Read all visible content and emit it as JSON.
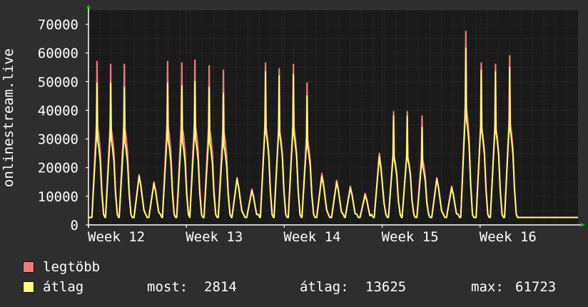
{
  "chart_data": {
    "type": "area",
    "ylabel": "onlinestream.live",
    "ylim": [
      0,
      75000
    ],
    "yticks": [
      0,
      10000,
      20000,
      30000,
      40000,
      50000,
      60000,
      70000
    ],
    "xlim": [
      0,
      43
    ],
    "xticks": [
      {
        "x": 0,
        "label": "Week 12"
      },
      {
        "x": 8.6,
        "label": "Week 13"
      },
      {
        "x": 17.2,
        "label": "Week 14"
      },
      {
        "x": 25.8,
        "label": "Week 15"
      },
      {
        "x": 34.4,
        "label": "Week 16"
      }
    ],
    "grid": true,
    "series": [
      {
        "name": "legtöbb",
        "color": "#f07a7a",
        "peaks": [
          {
            "x": 0.75,
            "y": 57000
          },
          {
            "x": 1.95,
            "y": 56000
          },
          {
            "x": 3.15,
            "y": 56000
          },
          {
            "x": 4.45,
            "y": 17500
          },
          {
            "x": 5.75,
            "y": 15000
          },
          {
            "x": 6.95,
            "y": 57000
          },
          {
            "x": 8.2,
            "y": 56500
          },
          {
            "x": 9.35,
            "y": 57500
          },
          {
            "x": 10.6,
            "y": 55500
          },
          {
            "x": 11.85,
            "y": 54000
          },
          {
            "x": 13.05,
            "y": 16500
          },
          {
            "x": 14.35,
            "y": 12500
          },
          {
            "x": 15.55,
            "y": 56500
          },
          {
            "x": 16.75,
            "y": 54500
          },
          {
            "x": 18.0,
            "y": 56000
          },
          {
            "x": 19.2,
            "y": 49500
          },
          {
            "x": 20.5,
            "y": 18000
          },
          {
            "x": 21.8,
            "y": 15500
          },
          {
            "x": 23.0,
            "y": 13500
          },
          {
            "x": 24.3,
            "y": 11000
          },
          {
            "x": 25.55,
            "y": 25000
          },
          {
            "x": 26.8,
            "y": 39500
          },
          {
            "x": 28.0,
            "y": 39500
          },
          {
            "x": 29.3,
            "y": 38000
          },
          {
            "x": 30.6,
            "y": 16500
          },
          {
            "x": 31.9,
            "y": 13500
          },
          {
            "x": 33.15,
            "y": 67500
          },
          {
            "x": 34.5,
            "y": 56500
          },
          {
            "x": 35.75,
            "y": 56000
          },
          {
            "x": 37.0,
            "y": 59000
          }
        ]
      },
      {
        "name": "átlag",
        "color": "#ffff80",
        "peaks": [
          {
            "x": 0.75,
            "y": 49500
          },
          {
            "x": 1.95,
            "y": 49500
          },
          {
            "x": 3.15,
            "y": 48000
          },
          {
            "x": 4.45,
            "y": 17000
          },
          {
            "x": 5.75,
            "y": 14500
          },
          {
            "x": 6.95,
            "y": 49500
          },
          {
            "x": 8.2,
            "y": 48500
          },
          {
            "x": 9.35,
            "y": 50000
          },
          {
            "x": 10.6,
            "y": 48000
          },
          {
            "x": 11.85,
            "y": 46000
          },
          {
            "x": 13.05,
            "y": 16000
          },
          {
            "x": 14.35,
            "y": 12000
          },
          {
            "x": 15.55,
            "y": 53500
          },
          {
            "x": 16.75,
            "y": 52000
          },
          {
            "x": 18.0,
            "y": 52500
          },
          {
            "x": 19.2,
            "y": 45000
          },
          {
            "x": 20.5,
            "y": 17000
          },
          {
            "x": 21.8,
            "y": 15000
          },
          {
            "x": 23.0,
            "y": 13000
          },
          {
            "x": 24.3,
            "y": 10500
          },
          {
            "x": 25.55,
            "y": 24000
          },
          {
            "x": 26.8,
            "y": 38000
          },
          {
            "x": 28.0,
            "y": 38000
          },
          {
            "x": 29.3,
            "y": 34000
          },
          {
            "x": 30.6,
            "y": 16000
          },
          {
            "x": 31.9,
            "y": 13000
          },
          {
            "x": 33.15,
            "y": 61700
          },
          {
            "x": 34.5,
            "y": 54000
          },
          {
            "x": 35.75,
            "y": 53500
          },
          {
            "x": 37.0,
            "y": 55000
          }
        ]
      }
    ],
    "stats": {
      "now_label": "most:",
      "now_value": "2814",
      "avg_label": "átlag:",
      "avg_value": "13625",
      "max_label": "max:",
      "max_value": "61723"
    }
  },
  "colors": {
    "background": "#2e2e2e",
    "plot_background": "#1a1a1a",
    "grid_major": "#5a2a2a",
    "grid_minor": "#3a3a3a",
    "axis": "#ffffff",
    "arrow": "#00c000"
  }
}
